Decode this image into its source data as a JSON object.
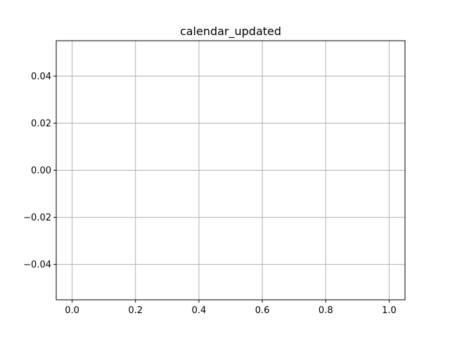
{
  "chart_data": {
    "type": "line",
    "title": "calendar_updated",
    "xlabel": "",
    "ylabel": "",
    "series": [],
    "xlim": [
      -0.05,
      1.05
    ],
    "ylim": [
      -0.055,
      0.055
    ],
    "xticks": [
      0.0,
      0.2,
      0.4,
      0.6,
      0.8,
      1.0
    ],
    "xtick_labels": [
      "0.0",
      "0.2",
      "0.4",
      "0.6",
      "0.8",
      "1.0"
    ],
    "yticks": [
      -0.04,
      -0.02,
      0.0,
      0.02,
      0.04
    ],
    "ytick_labels": [
      "−0.04",
      "−0.02",
      "0.00",
      "0.02",
      "0.04"
    ],
    "grid": true,
    "colors": {
      "grid": "#b0b0b0",
      "frame": "#000000",
      "background": "#ffffff"
    }
  }
}
